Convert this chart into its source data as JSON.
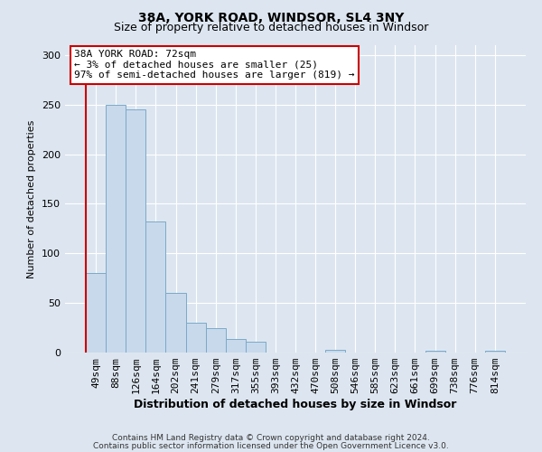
{
  "title": "38A, YORK ROAD, WINDSOR, SL4 3NY",
  "subtitle": "Size of property relative to detached houses in Windsor",
  "xlabel": "Distribution of detached houses by size in Windsor",
  "ylabel": "Number of detached properties",
  "bar_labels": [
    "49sqm",
    "88sqm",
    "126sqm",
    "164sqm",
    "202sqm",
    "241sqm",
    "279sqm",
    "317sqm",
    "355sqm",
    "393sqm",
    "432sqm",
    "470sqm",
    "508sqm",
    "546sqm",
    "585sqm",
    "623sqm",
    "661sqm",
    "699sqm",
    "738sqm",
    "776sqm",
    "814sqm"
  ],
  "bar_values": [
    80,
    250,
    245,
    132,
    60,
    30,
    25,
    14,
    11,
    0,
    0,
    0,
    3,
    0,
    0,
    0,
    0,
    2,
    0,
    0,
    2
  ],
  "bar_color": "#c8d9ec",
  "bar_edge_color": "#7aaac8",
  "annotation_title": "38A YORK ROAD: 72sqm",
  "annotation_line1": "← 3% of detached houses are smaller (25)",
  "annotation_line2": "97% of semi-detached houses are larger (819) →",
  "annotation_box_facecolor": "#ffffff",
  "annotation_box_edgecolor": "#cc0000",
  "line_color": "#cc0000",
  "ylim": [
    0,
    310
  ],
  "yticks": [
    0,
    50,
    100,
    150,
    200,
    250,
    300
  ],
  "background_color": "#dde6f0",
  "plot_bg_color": "#dde6f0",
  "grid_color": "#ffffff",
  "footer1": "Contains HM Land Registry data © Crown copyright and database right 2024.",
  "footer2": "Contains public sector information licensed under the Open Government Licence v3.0.",
  "title_fontsize": 10,
  "subtitle_fontsize": 9,
  "xlabel_fontsize": 9,
  "ylabel_fontsize": 8,
  "tick_fontsize": 8,
  "annotation_fontsize": 8,
  "footer_fontsize": 6.5
}
